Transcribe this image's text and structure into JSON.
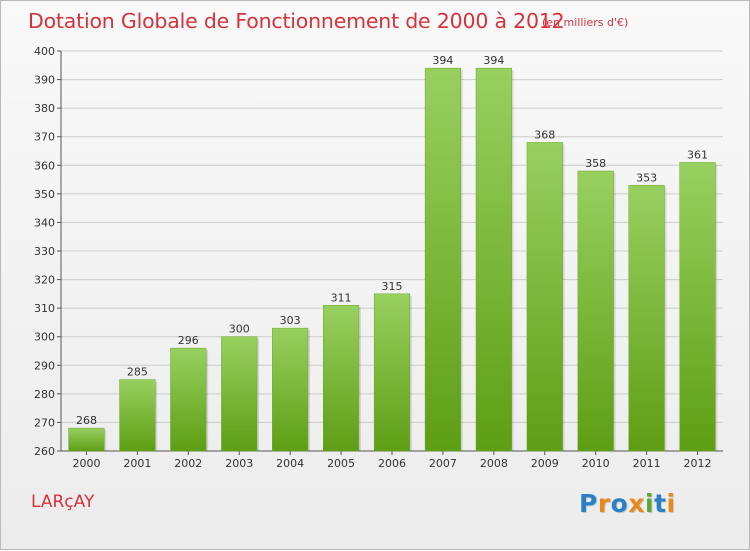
{
  "header": {
    "title": "Dotation Globale de Fonctionnement de 2000 à 2012",
    "subtitle": "(en milliers d'€)"
  },
  "footer": {
    "commune": "LARçAY",
    "logo_text": "Proxiti"
  },
  "colors": {
    "title": "#d6323c",
    "bar_top": "#98d060",
    "bar_bottom": "#5e9e14",
    "grid": "#cccccc"
  },
  "chart_data": {
    "type": "bar",
    "categories": [
      "2000",
      "2001",
      "2002",
      "2003",
      "2004",
      "2005",
      "2006",
      "2007",
      "2008",
      "2009",
      "2010",
      "2011",
      "2012"
    ],
    "values": [
      268,
      285,
      296,
      300,
      303,
      311,
      315,
      394,
      394,
      368,
      358,
      353,
      361
    ],
    "ylim": [
      260,
      400
    ],
    "yticks": [
      260,
      270,
      280,
      290,
      300,
      310,
      320,
      330,
      340,
      350,
      360,
      370,
      380,
      390,
      400
    ],
    "grid": true,
    "data_labels": true
  }
}
